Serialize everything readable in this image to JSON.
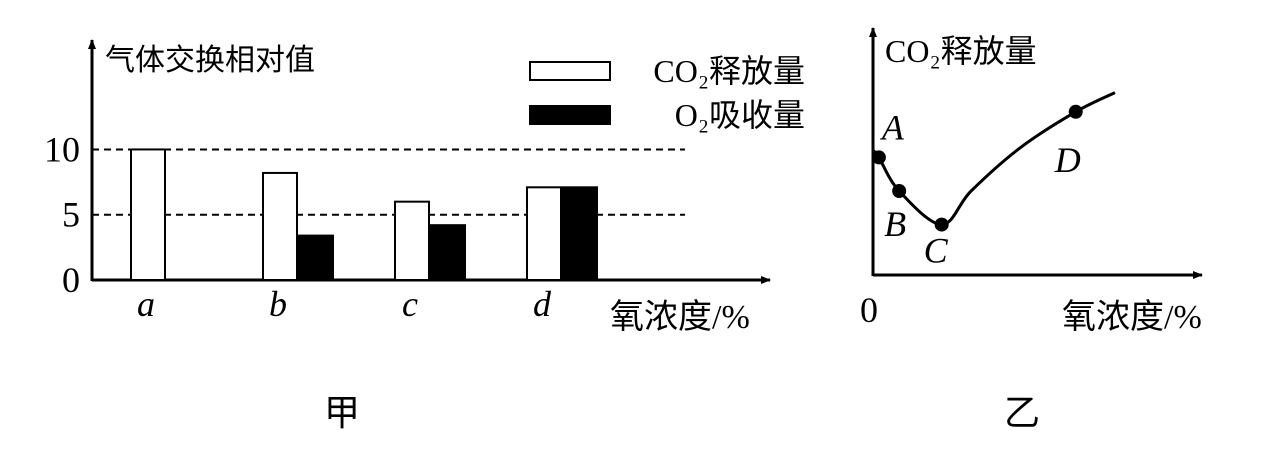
{
  "chart_data": [
    {
      "type": "bar",
      "y_label": "气体交换相对值",
      "x_label": "氧浓度/%",
      "caption": "甲",
      "categories": [
        "a",
        "b",
        "c",
        "d"
      ],
      "series": [
        {
          "name": "CO₂释放量",
          "color": "#ffffff",
          "values": [
            10,
            8.2,
            6,
            7.1
          ]
        },
        {
          "name": "O₂吸收量",
          "color": "#000000",
          "values": [
            null,
            3.4,
            4.2,
            7.1
          ]
        }
      ],
      "ylim": [
        0,
        18
      ],
      "yticks": [
        0,
        5,
        10
      ],
      "grid": [
        5,
        10
      ]
    },
    {
      "type": "line",
      "y_label": "CO₂释放量",
      "x_label": "氧浓度/%",
      "caption": "乙",
      "x": [
        0,
        1.8,
        8,
        21,
        30,
        45,
        62,
        74
      ],
      "values": [
        52,
        49,
        35,
        21,
        35,
        53,
        68,
        76
      ],
      "color": "#000000",
      "points": [
        {
          "label": "A",
          "x": 1.8,
          "y": 49
        },
        {
          "label": "B",
          "x": 8,
          "y": 35
        },
        {
          "label": "C",
          "x": 21,
          "y": 21
        },
        {
          "label": "D",
          "x": 62,
          "y": 68
        }
      ],
      "xlim": [
        0,
        100
      ],
      "ylim": [
        0,
        100
      ],
      "xticks": [
        0
      ]
    }
  ]
}
